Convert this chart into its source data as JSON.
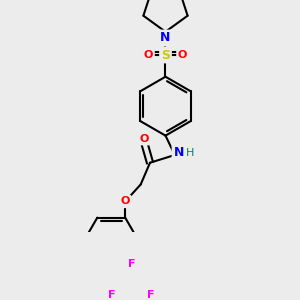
{
  "bg_color": "#ececec",
  "bond_color": "#000000",
  "colors": {
    "N": "#0000ff",
    "O": "#ff0000",
    "S": "#cccc00",
    "F": "#ff00ff",
    "H": "#008080",
    "C": "#000000"
  },
  "line_width": 1.5,
  "fig_size": [
    3.0,
    3.0
  ],
  "dpi": 100
}
